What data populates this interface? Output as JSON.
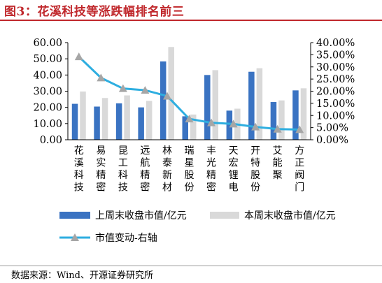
{
  "figure_title": "图3：花溪科技等涨跌幅排名前三",
  "source_note": "数据来源：Wind、开源证券研究所",
  "colors": {
    "prev_bar": "#3a73c2",
    "curr_bar": "#d9d9d9",
    "change_line": "#2eaee0",
    "change_marker": "#a6a6a6",
    "title": "#c0282c"
  },
  "chart_data": {
    "type": "bar",
    "categories": [
      "花溪科技",
      "易实精密",
      "昆工科技",
      "远航精密",
      "林泰新材",
      "瑞星股份",
      "丰光精密",
      "天宏锂电",
      "开特股份",
      "艾能聚",
      "方正阀门"
    ],
    "series": [
      {
        "name": "上周末收盘市值/亿元",
        "type": "bar",
        "axis": "left",
        "values": [
          22.2,
          20.5,
          22.5,
          20.0,
          48.4,
          14.5,
          40.0,
          18.0,
          42.0,
          23.3,
          30.5
        ]
      },
      {
        "name": "本周末收盘市值/亿元",
        "type": "bar",
        "axis": "left",
        "values": [
          29.8,
          25.8,
          27.4,
          24.0,
          57.3,
          15.6,
          43.0,
          19.2,
          44.2,
          24.3,
          31.8
        ]
      },
      {
        "name": "市值变动-右轴",
        "type": "line",
        "axis": "right",
        "values": [
          34.2,
          25.5,
          21.1,
          20.4,
          18.0,
          8.6,
          7.0,
          6.5,
          5.3,
          4.4,
          4.2
        ]
      }
    ],
    "y_left": {
      "ticks": [
        "0.00",
        "10.00",
        "20.00",
        "30.00",
        "40.00",
        "50.00",
        "60.00"
      ],
      "ylim": [
        0,
        60
      ]
    },
    "y_right": {
      "ticks": [
        "0.00%",
        "5.00%",
        "10.00%",
        "15.00%",
        "20.00%",
        "25.00%",
        "30.00%",
        "35.00%",
        "40.00%"
      ],
      "ylim": [
        0,
        40
      ]
    },
    "grid": false,
    "legend_position": "bottom"
  }
}
